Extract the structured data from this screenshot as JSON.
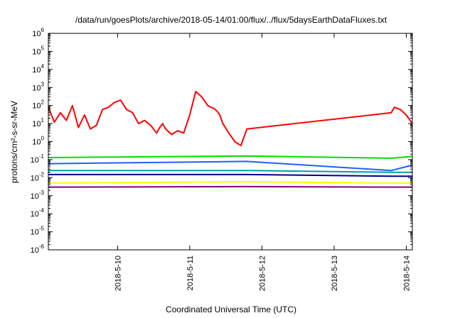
{
  "chart_data": {
    "type": "line",
    "title": "/data/run/goesPlots/archive/2018-05-14/01:00/flux/../flux/5daysEarthDataFluxes.txt",
    "xlabel": "Coordinated Universal Time (UTC)",
    "ylabel": "protons/cm²-s-sr-MeV",
    "yscale": "log",
    "ylim": [
      1e-06,
      1000000.0
    ],
    "xlim": [
      "2018-05-09 01:00",
      "2018-05-14 02:00"
    ],
    "x_ticks": [
      "2018-5-10",
      "2018-5-11",
      "2018-5-12",
      "2018-5-13",
      "2018-5-14"
    ],
    "y_ticks": [
      {
        "base": "10",
        "exp": "6"
      },
      {
        "base": "10",
        "exp": "5"
      },
      {
        "base": "10",
        "exp": "4"
      },
      {
        "base": "10",
        "exp": "3"
      },
      {
        "base": "10",
        "exp": "2"
      },
      {
        "base": "10",
        "exp": "1"
      },
      {
        "base": "10",
        "exp": "0"
      },
      {
        "base": "10",
        "exp": "-1"
      },
      {
        "base": "10",
        "exp": "-2"
      },
      {
        "base": "10",
        "exp": "-3"
      },
      {
        "base": "10",
        "exp": "-4"
      },
      {
        "base": "10",
        "exp": "-5"
      },
      {
        "base": "10",
        "exp": "-6"
      }
    ],
    "grid": false,
    "legend": "none",
    "series": [
      {
        "color": "#ff0000",
        "x": [
          "2018-05-09 01:00",
          "2018-05-09 03:00",
          "2018-05-09 05:00",
          "2018-05-09 07:00",
          "2018-05-09 09:00",
          "2018-05-09 11:00",
          "2018-05-09 13:00",
          "2018-05-09 15:00",
          "2018-05-09 17:00",
          "2018-05-09 19:00",
          "2018-05-09 21:00",
          "2018-05-09 23:00",
          "2018-05-10 01:00",
          "2018-05-10 03:00",
          "2018-05-10 05:00",
          "2018-05-10 07:00",
          "2018-05-10 09:00",
          "2018-05-10 11:00",
          "2018-05-10 13:00",
          "2018-05-10 14:00",
          "2018-05-10 15:00",
          "2018-05-10 16:00",
          "2018-05-10 18:00",
          "2018-05-10 20:00",
          "2018-05-10 22:00",
          "2018-05-11 00:00",
          "2018-05-11 02:00",
          "2018-05-11 04:00",
          "2018-05-11 06:00",
          "2018-05-11 07:00",
          "2018-05-11 08:00",
          "2018-05-11 09:00",
          "2018-05-11 10:00",
          "2018-05-11 11:00",
          "2018-05-11 13:00",
          "2018-05-11 15:00",
          "2018-05-11 17:00",
          "2018-05-11 19:00",
          "2018-05-13 19:00",
          "2018-05-13 20:00",
          "2018-05-13 22:00",
          "2018-05-14 00:00",
          "2018-05-14 02:00"
        ],
        "y": [
          80,
          12,
          40,
          15,
          100,
          6,
          30,
          5,
          8,
          60,
          80,
          150,
          200,
          60,
          40,
          10,
          15,
          8,
          3,
          6,
          10,
          5,
          2.5,
          4,
          3,
          30,
          600,
          300,
          100,
          80,
          70,
          50,
          30,
          10,
          3,
          1,
          0.6,
          5,
          40,
          80,
          60,
          30,
          10
        ]
      },
      {
        "color": "#00dd00",
        "x": [
          "2018-05-09 01:00",
          "2018-05-11 19:00",
          "2018-05-13 19:00",
          "2018-05-14 02:00"
        ],
        "y": [
          0.13,
          0.16,
          0.12,
          0.15
        ]
      },
      {
        "color": "#2060ff",
        "x": [
          "2018-05-09 01:00",
          "2018-05-11 19:00",
          "2018-05-13 19:00",
          "2018-05-14 02:00"
        ],
        "y": [
          0.06,
          0.08,
          0.025,
          0.05
        ]
      },
      {
        "color": "#00a0a0",
        "x": [
          "2018-05-09 01:00",
          "2018-05-11 19:00",
          "2018-05-13 19:00",
          "2018-05-14 02:00"
        ],
        "y": [
          0.025,
          0.025,
          0.02,
          0.02
        ]
      },
      {
        "color": "#000088",
        "x": [
          "2018-05-09 01:00",
          "2018-05-11 19:00",
          "2018-05-13 19:00",
          "2018-05-14 02:00"
        ],
        "y": [
          0.015,
          0.015,
          0.012,
          0.012
        ]
      },
      {
        "color": "#ffff00",
        "x": [
          "2018-05-09 01:00",
          "2018-05-11 19:00",
          "2018-05-13 19:00",
          "2018-05-14 02:00"
        ],
        "y": [
          0.005,
          0.006,
          0.005,
          0.005
        ]
      },
      {
        "color": "#800080",
        "x": [
          "2018-05-09 01:00",
          "2018-05-11 19:00",
          "2018-05-13 19:00",
          "2018-05-14 02:00"
        ],
        "y": [
          0.003,
          0.0032,
          0.003,
          0.003
        ]
      }
    ]
  }
}
